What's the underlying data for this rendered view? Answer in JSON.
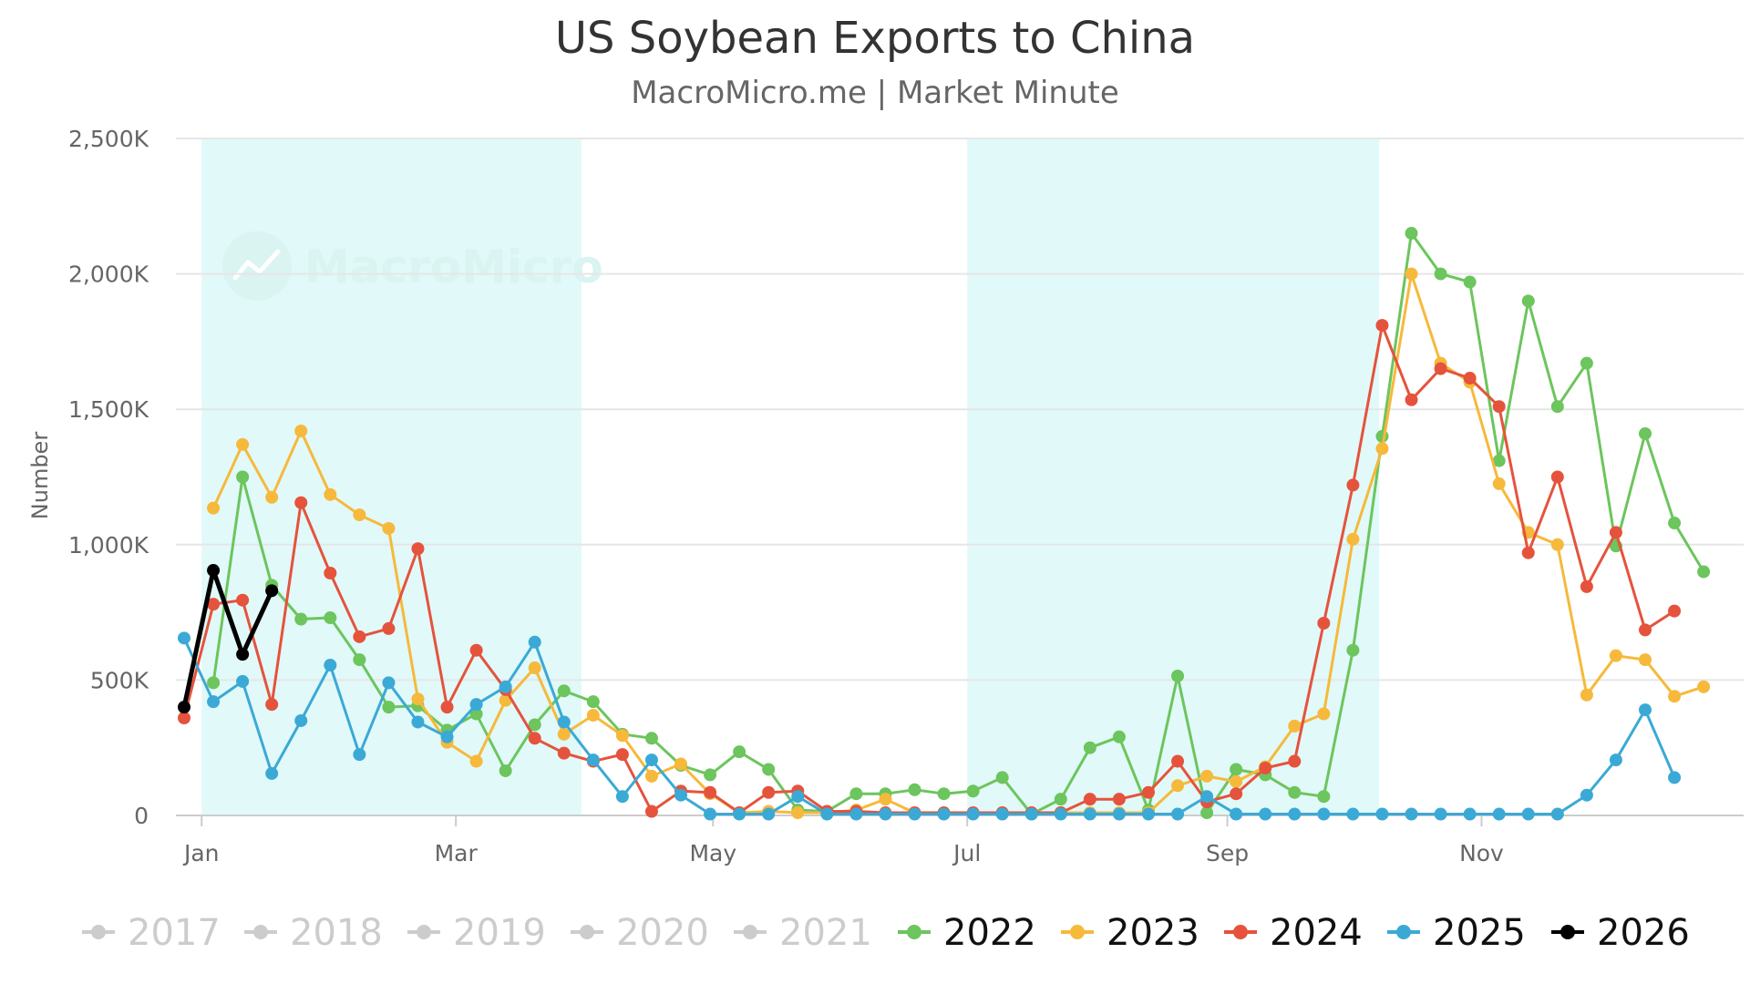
{
  "chart_data": {
    "type": "line",
    "title": "US Soybean Exports to China",
    "subtitle": "MacroMicro.me | Market Minute",
    "ylabel": "Number",
    "xlabel": "",
    "ylim": [
      0,
      2500
    ],
    "yticks": [
      0,
      500,
      1000,
      1500,
      2000,
      2500
    ],
    "ytick_labels": [
      "0",
      "500K",
      "1,000K",
      "1,500K",
      "2,000K",
      "2,500K"
    ],
    "y_unit": "thousand",
    "x_unit": "week of year",
    "xlim": [
      0,
      53
    ],
    "xticks": [
      {
        "label": "Jan",
        "week": 0.6
      },
      {
        "label": "Mar",
        "week": 9.3
      },
      {
        "label": "May",
        "week": 18.1
      },
      {
        "label": "Jul",
        "week": 26.8
      },
      {
        "label": "Sep",
        "week": 35.7
      },
      {
        "label": "Nov",
        "week": 44.4
      }
    ],
    "shaded_ranges": [
      {
        "from": 0.6,
        "to": 13.6
      },
      {
        "from": 26.8,
        "to": 40.9
      }
    ],
    "grid": true,
    "legend_position": "bottom",
    "watermark": "MacroMicro",
    "series": [
      {
        "name": "2017",
        "visible": false,
        "color": "#cccccc",
        "points": []
      },
      {
        "name": "2018",
        "visible": false,
        "color": "#cccccc",
        "points": []
      },
      {
        "name": "2019",
        "visible": false,
        "color": "#cccccc",
        "points": []
      },
      {
        "name": "2020",
        "visible": false,
        "color": "#cccccc",
        "points": []
      },
      {
        "name": "2021",
        "visible": false,
        "color": "#cccccc",
        "points": []
      },
      {
        "name": "2022",
        "visible": true,
        "color": "#6cc55d",
        "points": [
          [
            1,
            490
          ],
          [
            2,
            1250
          ],
          [
            3,
            850
          ],
          [
            4,
            725
          ],
          [
            5,
            730
          ],
          [
            6,
            575
          ],
          [
            7,
            400
          ],
          [
            8,
            405
          ],
          [
            9,
            315
          ],
          [
            10,
            375
          ],
          [
            11,
            165
          ],
          [
            12,
            335
          ],
          [
            13,
            460
          ],
          [
            14,
            420
          ],
          [
            15,
            300
          ],
          [
            16,
            285
          ],
          [
            17,
            185
          ],
          [
            18,
            150
          ],
          [
            19,
            235
          ],
          [
            20,
            170
          ],
          [
            21,
            20
          ],
          [
            22,
            15
          ],
          [
            23,
            80
          ],
          [
            24,
            80
          ],
          [
            25,
            95
          ],
          [
            26,
            80
          ],
          [
            27,
            90
          ],
          [
            28,
            140
          ],
          [
            29,
            5
          ],
          [
            30,
            60
          ],
          [
            31,
            250
          ],
          [
            32,
            290
          ],
          [
            33,
            20
          ],
          [
            34,
            515
          ],
          [
            35,
            10
          ],
          [
            36,
            170
          ],
          [
            37,
            150
          ],
          [
            38,
            85
          ],
          [
            39,
            70
          ],
          [
            40,
            610
          ],
          [
            41,
            1400
          ],
          [
            42,
            2150
          ],
          [
            43,
            2000
          ],
          [
            44,
            1970
          ],
          [
            45,
            1310
          ],
          [
            46,
            1900
          ],
          [
            47,
            1510
          ],
          [
            48,
            1670
          ],
          [
            49,
            995
          ],
          [
            50,
            1410
          ],
          [
            51,
            1080
          ],
          [
            52,
            900
          ]
        ]
      },
      {
        "name": "2023",
        "visible": true,
        "color": "#f6b93b",
        "points": [
          [
            1,
            1135
          ],
          [
            2,
            1370
          ],
          [
            3,
            1175
          ],
          [
            4,
            1420
          ],
          [
            5,
            1185
          ],
          [
            6,
            1110
          ],
          [
            7,
            1060
          ],
          [
            8,
            430
          ],
          [
            9,
            270
          ],
          [
            10,
            200
          ],
          [
            11,
            425
          ],
          [
            12,
            545
          ],
          [
            13,
            300
          ],
          [
            14,
            370
          ],
          [
            15,
            295
          ],
          [
            16,
            145
          ],
          [
            17,
            190
          ],
          [
            18,
            80
          ],
          [
            19,
            10
          ],
          [
            20,
            15
          ],
          [
            21,
            10
          ],
          [
            22,
            10
          ],
          [
            23,
            20
          ],
          [
            24,
            60
          ],
          [
            25,
            10
          ],
          [
            26,
            10
          ],
          [
            27,
            10
          ],
          [
            28,
            10
          ],
          [
            29,
            10
          ],
          [
            30,
            10
          ],
          [
            31,
            10
          ],
          [
            32,
            10
          ],
          [
            33,
            10
          ],
          [
            34,
            110
          ],
          [
            35,
            145
          ],
          [
            36,
            125
          ],
          [
            37,
            180
          ],
          [
            38,
            330
          ],
          [
            39,
            375
          ],
          [
            40,
            1020
          ],
          [
            41,
            1355
          ],
          [
            42,
            2000
          ],
          [
            43,
            1670
          ],
          [
            44,
            1600
          ],
          [
            45,
            1225
          ],
          [
            46,
            1045
          ],
          [
            47,
            1000
          ],
          [
            48,
            445
          ],
          [
            49,
            590
          ],
          [
            50,
            575
          ],
          [
            51,
            440
          ],
          [
            52,
            475
          ]
        ]
      },
      {
        "name": "2024",
        "visible": true,
        "color": "#e5533d",
        "points": [
          [
            0,
            360
          ],
          [
            1,
            780
          ],
          [
            2,
            795
          ],
          [
            3,
            410
          ],
          [
            4,
            1155
          ],
          [
            5,
            895
          ],
          [
            6,
            660
          ],
          [
            7,
            690
          ],
          [
            8,
            985
          ],
          [
            9,
            400
          ],
          [
            10,
            610
          ],
          [
            11,
            465
          ],
          [
            12,
            285
          ],
          [
            13,
            230
          ],
          [
            14,
            200
          ],
          [
            15,
            225
          ],
          [
            16,
            15
          ],
          [
            17,
            90
          ],
          [
            18,
            85
          ],
          [
            19,
            10
          ],
          [
            20,
            85
          ],
          [
            21,
            90
          ],
          [
            22,
            15
          ],
          [
            23,
            15
          ],
          [
            24,
            10
          ],
          [
            25,
            10
          ],
          [
            26,
            10
          ],
          [
            27,
            10
          ],
          [
            28,
            10
          ],
          [
            29,
            10
          ],
          [
            30,
            10
          ],
          [
            31,
            60
          ],
          [
            32,
            60
          ],
          [
            33,
            85
          ],
          [
            34,
            200
          ],
          [
            35,
            50
          ],
          [
            36,
            80
          ],
          [
            37,
            175
          ],
          [
            38,
            200
          ],
          [
            39,
            710
          ],
          [
            40,
            1220
          ],
          [
            41,
            1810
          ],
          [
            42,
            1535
          ],
          [
            43,
            1650
          ],
          [
            44,
            1615
          ],
          [
            45,
            1510
          ],
          [
            46,
            970
          ],
          [
            47,
            1250
          ],
          [
            48,
            845
          ],
          [
            49,
            1045
          ],
          [
            50,
            685
          ],
          [
            51,
            755
          ]
        ]
      },
      {
        "name": "2025",
        "visible": true,
        "color": "#3ba9d6",
        "points": [
          [
            0,
            655
          ],
          [
            1,
            420
          ],
          [
            2,
            495
          ],
          [
            3,
            155
          ],
          [
            4,
            350
          ],
          [
            5,
            555
          ],
          [
            6,
            225
          ],
          [
            7,
            490
          ],
          [
            8,
            345
          ],
          [
            9,
            290
          ],
          [
            10,
            410
          ],
          [
            11,
            475
          ],
          [
            12,
            640
          ],
          [
            13,
            345
          ],
          [
            14,
            205
          ],
          [
            15,
            70
          ],
          [
            16,
            205
          ],
          [
            17,
            75
          ],
          [
            18,
            5
          ],
          [
            19,
            5
          ],
          [
            20,
            5
          ],
          [
            21,
            70
          ],
          [
            22,
            5
          ],
          [
            23,
            5
          ],
          [
            24,
            5
          ],
          [
            25,
            5
          ],
          [
            26,
            5
          ],
          [
            27,
            5
          ],
          [
            28,
            5
          ],
          [
            29,
            5
          ],
          [
            30,
            5
          ],
          [
            31,
            5
          ],
          [
            32,
            5
          ],
          [
            33,
            5
          ],
          [
            34,
            5
          ],
          [
            35,
            70
          ],
          [
            36,
            5
          ],
          [
            37,
            5
          ],
          [
            38,
            5
          ],
          [
            39,
            5
          ],
          [
            40,
            5
          ],
          [
            41,
            5
          ],
          [
            42,
            5
          ],
          [
            43,
            5
          ],
          [
            44,
            5
          ],
          [
            45,
            5
          ],
          [
            46,
            5
          ],
          [
            47,
            5
          ],
          [
            48,
            75
          ],
          [
            49,
            205
          ],
          [
            50,
            390
          ],
          [
            51,
            140
          ]
        ]
      },
      {
        "name": "2026",
        "visible": true,
        "color": "#000000",
        "points": [
          [
            0,
            400
          ],
          [
            1,
            905
          ],
          [
            2,
            595
          ],
          [
            3,
            830
          ]
        ]
      }
    ]
  }
}
